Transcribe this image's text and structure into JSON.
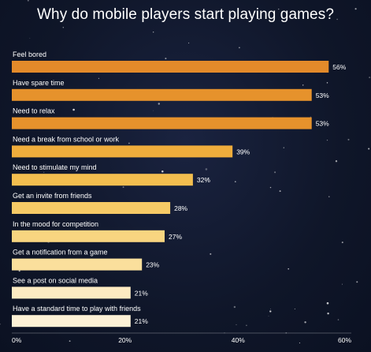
{
  "chart_data": {
    "type": "bar",
    "orientation": "horizontal",
    "title": "Why do mobile players start playing games?",
    "categories": [
      "Feel bored",
      "Have spare time",
      "Need to relax",
      "Need a break from school or work",
      "Need to stimulate my mind",
      "Get an invite from friends",
      "In the mood for competition",
      "Get a notification from a game",
      "See a post on social media",
      "Have a standard time to play with friends"
    ],
    "values": [
      56,
      53,
      53,
      39,
      32,
      28,
      27,
      23,
      21,
      21
    ],
    "value_labels": [
      "56%",
      "53%",
      "53%",
      "39%",
      "32%",
      "28%",
      "27%",
      "23%",
      "21%",
      "21%"
    ],
    "bar_colors": [
      "#e38a2a",
      "#e6922c",
      "#e6922c",
      "#efad3c",
      "#f3be4f",
      "#f6ca66",
      "#f8d580",
      "#fadf9c",
      "#fcebc2",
      "#fdf1d6"
    ],
    "xlim": [
      0,
      60
    ],
    "xticks": [
      0,
      20,
      40,
      60
    ],
    "xtick_labels": [
      "0%",
      "20%",
      "40%",
      "60%"
    ],
    "xlabel": "",
    "ylabel": "",
    "grid": false,
    "legend": "none"
  }
}
